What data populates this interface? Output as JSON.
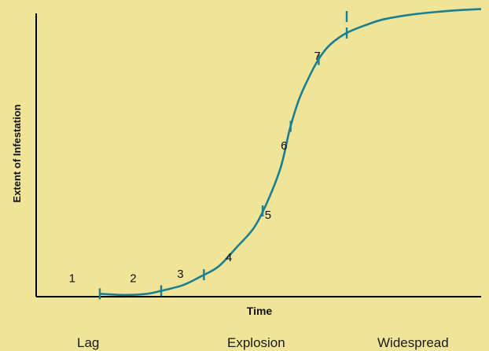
{
  "chart_data": {
    "type": "line",
    "title": "",
    "xlabel": "Time",
    "ylabel": "Extent of Infestation",
    "xlim": [
      0,
      100
    ],
    "ylim": [
      0,
      100
    ],
    "grid": false,
    "line_color": "#1a7f91",
    "axis_color": "#000000",
    "background": "#efe498",
    "curve": {
      "x": [
        14.3,
        20,
        25,
        28,
        33,
        37,
        41,
        45,
        49,
        52,
        55,
        57,
        59,
        61,
        63,
        65,
        67,
        70,
        74,
        78,
        84,
        90,
        96,
        100
      ],
      "y": [
        1,
        0.6,
        1,
        2,
        4,
        7,
        10.5,
        17,
        24,
        33,
        45,
        58,
        68,
        75,
        81,
        85.5,
        88.5,
        91.5,
        94,
        96,
        97.6,
        98.6,
        99.3,
        99.6
      ]
    },
    "stage_markers": [
      {
        "label": "1",
        "x": 14.3
      },
      {
        "label": "2",
        "x": 28.1
      },
      {
        "label": "3",
        "x": 37.7
      },
      {
        "label": "4",
        "x": 50.9
      },
      {
        "label": "5",
        "x": 57.2
      },
      {
        "label": "6",
        "x": 63.5
      },
      {
        "label": "7",
        "x": 69.8
      }
    ],
    "stage_labels": [
      {
        "text": "1",
        "x": 8.1,
        "y": 5
      },
      {
        "text": "2",
        "x": 21.8,
        "y": 5
      },
      {
        "text": "3",
        "x": 32.4,
        "y": 6.6
      },
      {
        "text": "4",
        "x": 43.3,
        "y": 12.3
      },
      {
        "text": "5",
        "x": 52.1,
        "y": 27
      },
      {
        "text": "6",
        "x": 55.7,
        "y": 51
      },
      {
        "text": "7",
        "x": 63.2,
        "y": 82
      }
    ],
    "phases": [
      "Lag",
      "Explosion",
      "Widespread"
    ]
  }
}
